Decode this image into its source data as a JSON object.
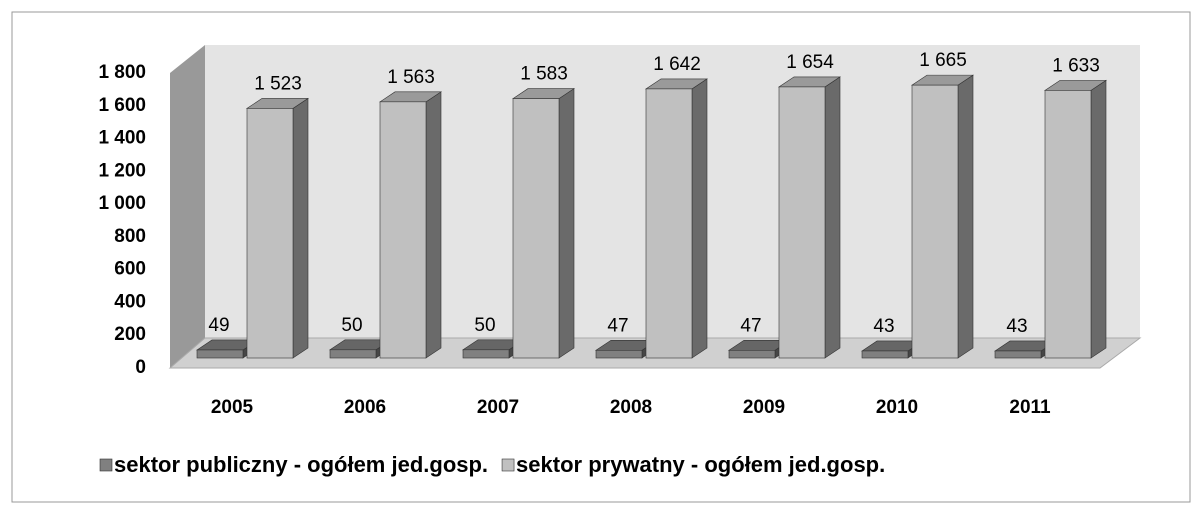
{
  "chart_data": {
    "type": "bar3d",
    "categories": [
      "2005",
      "2006",
      "2007",
      "2008",
      "2009",
      "2010",
      "2011"
    ],
    "series": [
      {
        "name": "sektor publiczny - ogółem jed.gosp.",
        "color": "#808080",
        "values": [
          49,
          50,
          50,
          47,
          47,
          43,
          43
        ]
      },
      {
        "name": "sektor prywatny - ogółem jed.gosp.",
        "color": "#c0c0c0",
        "values": [
          1523,
          1563,
          1583,
          1642,
          1654,
          1665,
          1633
        ],
        "value_labels": [
          "1 523",
          "1 563",
          "1 583",
          "1 642",
          "1 654",
          "1 665",
          "1 633"
        ]
      }
    ],
    "ylim": [
      0,
      1800
    ],
    "yticks": [
      0,
      200,
      400,
      600,
      800,
      {
        "value": 1000,
        "label": "1 000"
      },
      {
        "value": 1200,
        "label": "1 200"
      },
      {
        "value": 1400,
        "label": "1 400"
      },
      {
        "value": 1600,
        "label": "1 600"
      },
      {
        "value": 1800,
        "label": "1 800"
      }
    ]
  }
}
